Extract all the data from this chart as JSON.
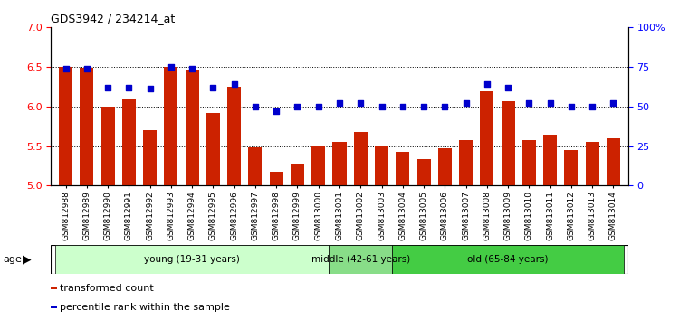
{
  "title": "GDS3942 / 234214_at",
  "samples": [
    "GSM812988",
    "GSM812989",
    "GSM812990",
    "GSM812991",
    "GSM812992",
    "GSM812993",
    "GSM812994",
    "GSM812995",
    "GSM812996",
    "GSM812997",
    "GSM812998",
    "GSM812999",
    "GSM813000",
    "GSM813001",
    "GSM813002",
    "GSM813003",
    "GSM813004",
    "GSM813005",
    "GSM813006",
    "GSM813007",
    "GSM813008",
    "GSM813009",
    "GSM813010",
    "GSM813011",
    "GSM813012",
    "GSM813013",
    "GSM813014"
  ],
  "bar_values": [
    6.5,
    6.49,
    6.0,
    6.1,
    5.7,
    6.5,
    6.46,
    5.92,
    6.25,
    5.48,
    5.17,
    5.28,
    5.5,
    5.55,
    5.68,
    5.5,
    5.43,
    5.33,
    5.47,
    5.58,
    6.19,
    6.06,
    5.58,
    5.64,
    5.45,
    5.55,
    5.6
  ],
  "blue_values": [
    74,
    74,
    62,
    62,
    61,
    75,
    74,
    62,
    64,
    50,
    47,
    50,
    50,
    52,
    52,
    50,
    50,
    50,
    50,
    52,
    64,
    62,
    52,
    52,
    50,
    50,
    52
  ],
  "bar_color": "#cc2200",
  "blue_color": "#0000cc",
  "ylim_left": [
    5.0,
    7.0
  ],
  "ylim_right": [
    0,
    100
  ],
  "yticks_left": [
    5.0,
    5.5,
    6.0,
    6.5,
    7.0
  ],
  "yticks_right": [
    0,
    25,
    50,
    75,
    100
  ],
  "ytick_labels_right": [
    "0",
    "25",
    "50",
    "75",
    "100%"
  ],
  "hlines": [
    5.5,
    6.0,
    6.5
  ],
  "groups": [
    {
      "label": "young (19-31 years)",
      "start": 0,
      "end": 13,
      "color": "#ccffcc"
    },
    {
      "label": "middle (42-61 years)",
      "start": 13,
      "end": 16,
      "color": "#88dd88"
    },
    {
      "label": "old (65-84 years)",
      "start": 16,
      "end": 27,
      "color": "#44cc44"
    }
  ],
  "legend_items": [
    {
      "color": "#cc2200",
      "label": "transformed count"
    },
    {
      "color": "#0000cc",
      "label": "percentile rank within the sample"
    }
  ],
  "background_color": "#ffffff"
}
